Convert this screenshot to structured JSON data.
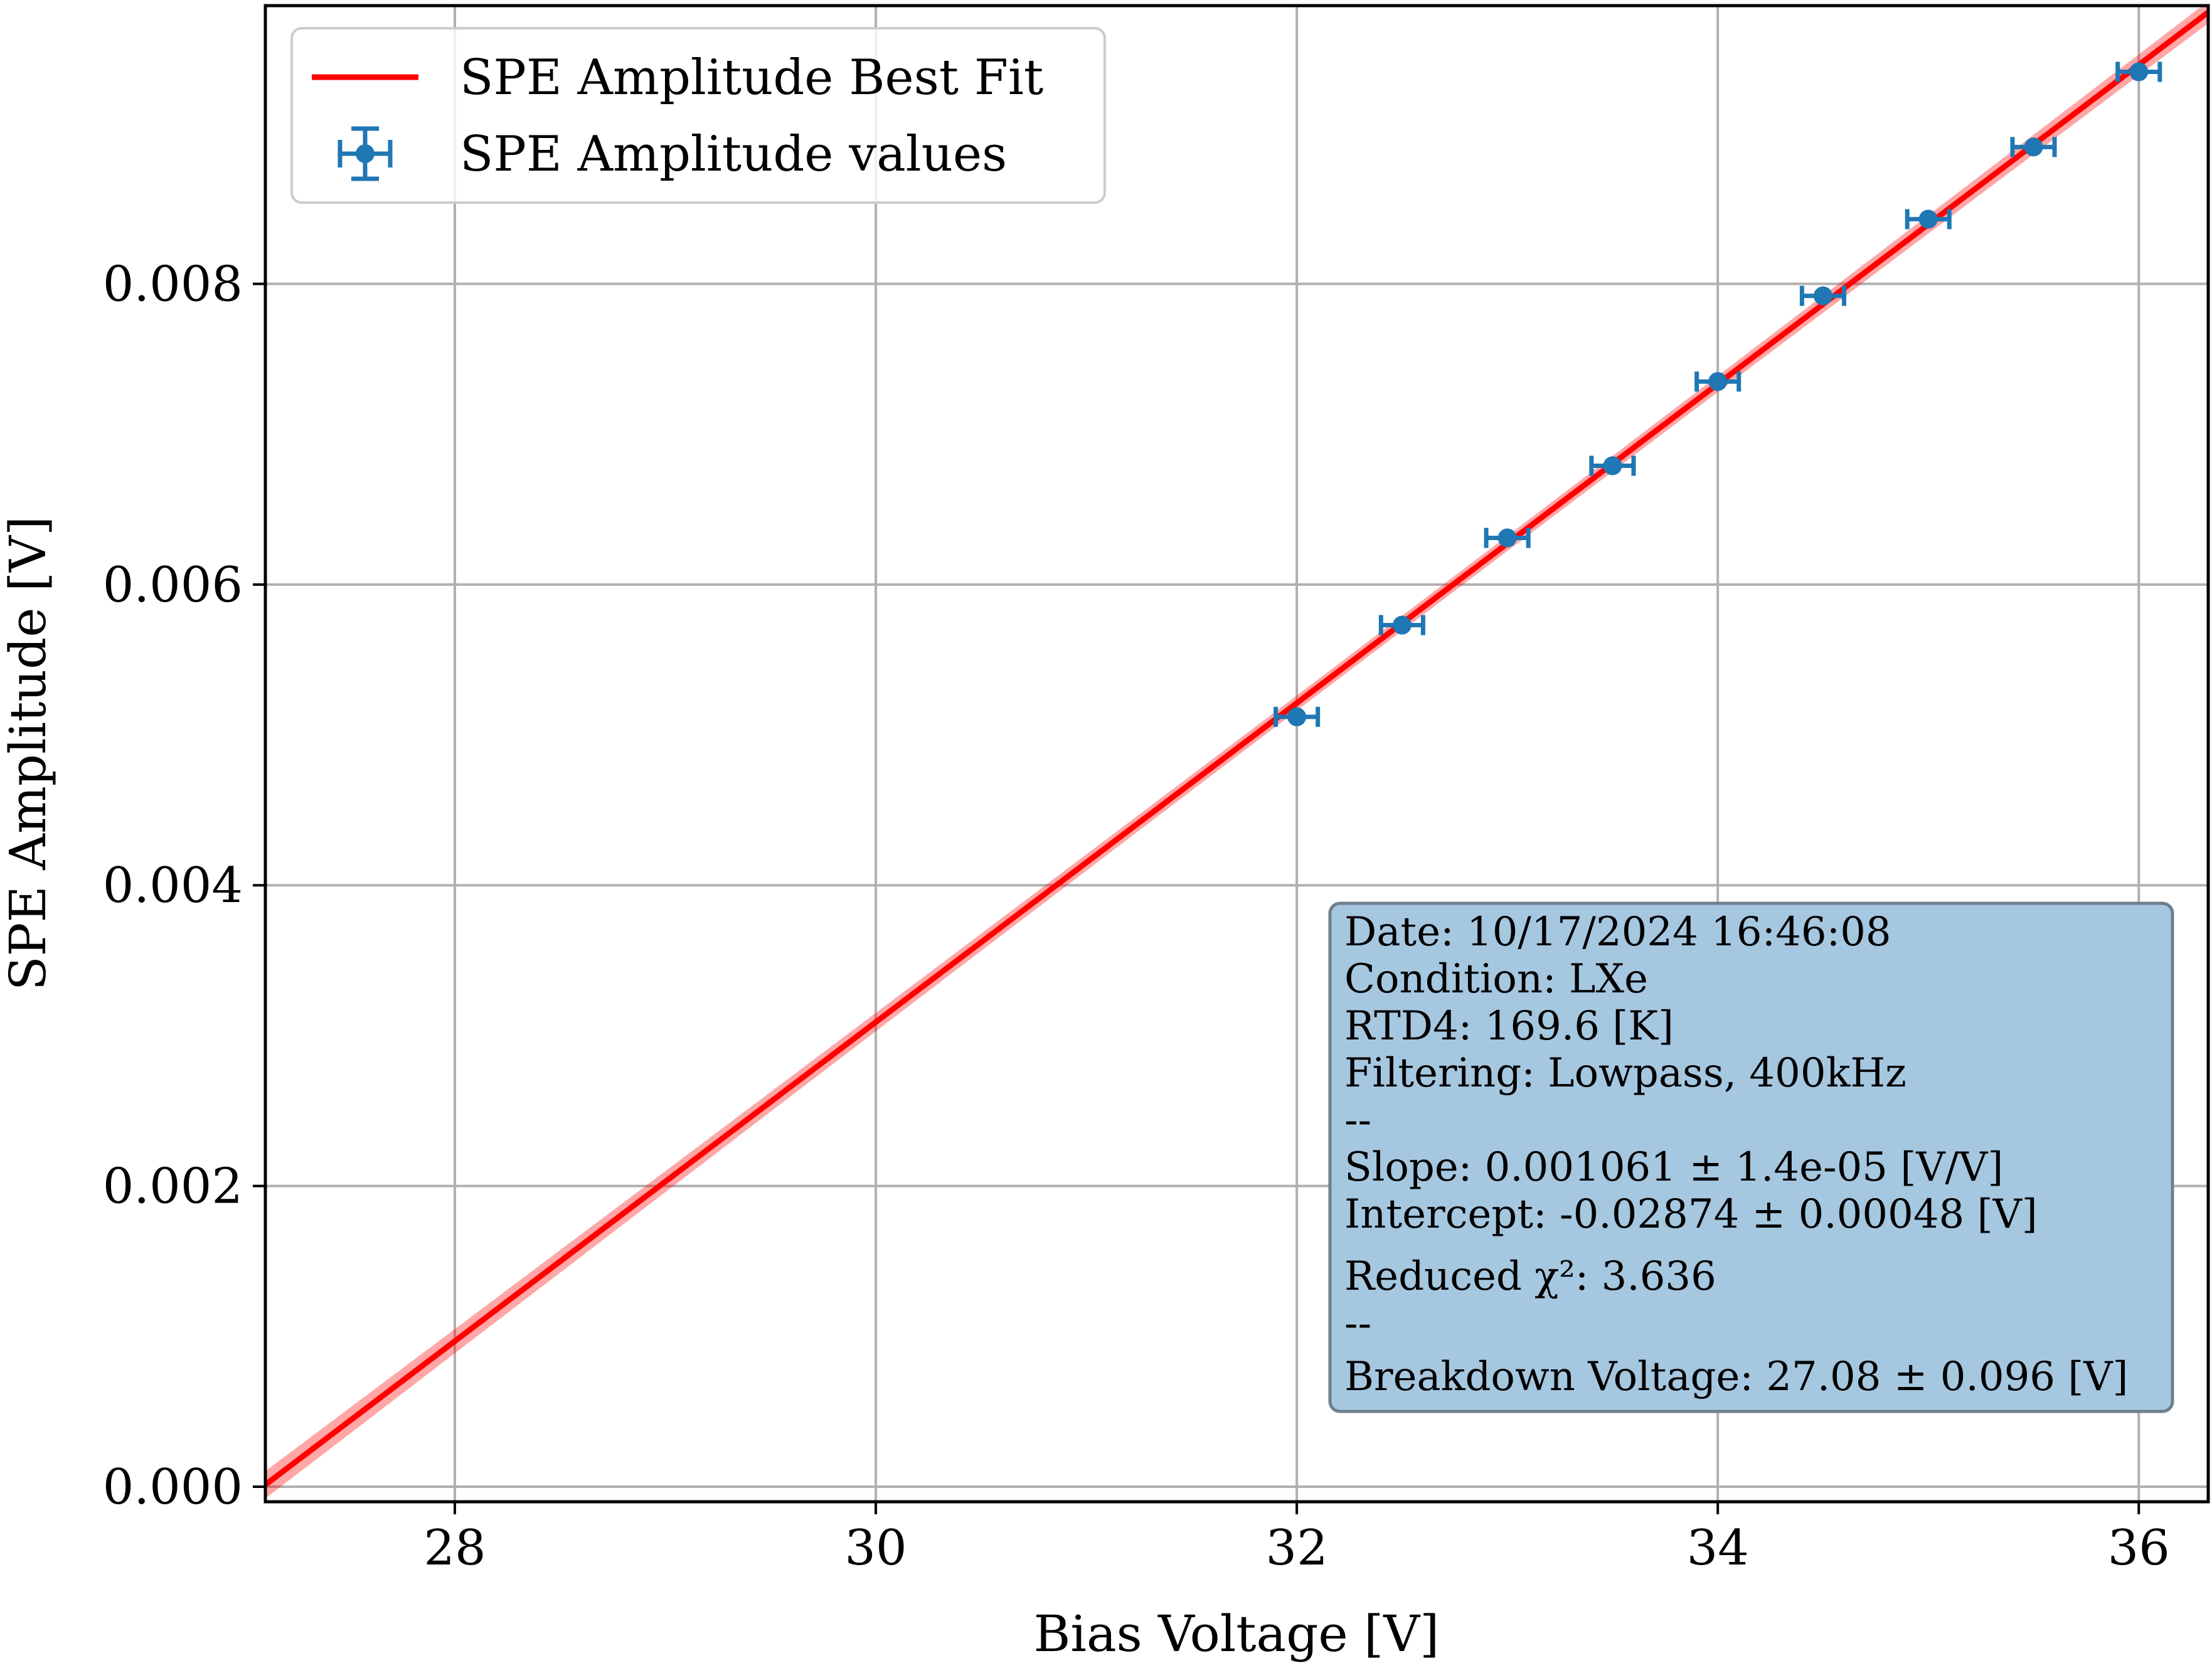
{
  "chart_data": {
    "type": "scatter",
    "title": "",
    "xlabel": "Bias Voltage [V]",
    "ylabel": "SPE Amplitude [V]",
    "xlim": [
      27.1,
      36.33
    ],
    "ylim": [
      -0.0001,
      0.00985
    ],
    "grid": true,
    "x_ticks": [
      28,
      30,
      32,
      34,
      36
    ],
    "x_tick_labels": [
      "28",
      "30",
      "32",
      "34",
      "36"
    ],
    "y_ticks": [
      0.0,
      0.002,
      0.004,
      0.006,
      0.008
    ],
    "y_tick_labels": [
      "0.000",
      "0.002",
      "0.004",
      "0.006",
      "0.008"
    ],
    "legend": {
      "position": "top-left",
      "entries": [
        "SPE Amplitude Best Fit",
        "SPE Amplitude values"
      ]
    },
    "series": [
      {
        "name": "SPE Amplitude values",
        "kind": "errorbar",
        "color": "#1f77b4",
        "x": [
          32.0,
          32.5,
          33.0,
          33.5,
          34.0,
          34.5,
          35.0,
          35.5,
          36.0
        ],
        "y": [
          0.00512,
          0.00573,
          0.00631,
          0.00679,
          0.00735,
          0.00792,
          0.00843,
          0.00891,
          0.00941
        ],
        "x_err": [
          0.1,
          0.1,
          0.1,
          0.1,
          0.1,
          0.1,
          0.1,
          0.1,
          0.1
        ]
      },
      {
        "name": "SPE Amplitude Best Fit",
        "kind": "line",
        "color": "#ff0000",
        "slope": 0.001061,
        "slope_err": 1.4e-05,
        "intercept": -0.02874,
        "intercept_err": 0.00048
      }
    ],
    "info_box": {
      "lines": [
        "Date: 10/17/2024 16:46:08",
        "Condition: LXe",
        "RTD4: 169.6 [K]",
        "Filtering: Lowpass, 400kHz",
        "--",
        "Slope: 0.001061 ± 1.4e-05 [V/V]",
        "Intercept: -0.02874 ± 0.00048 [V]",
        "Reduced χ²: 3.636",
        "--",
        "Breakdown Voltage: 27.08 ± 0.096 [V]"
      ],
      "background": "#a6c7e0"
    }
  }
}
